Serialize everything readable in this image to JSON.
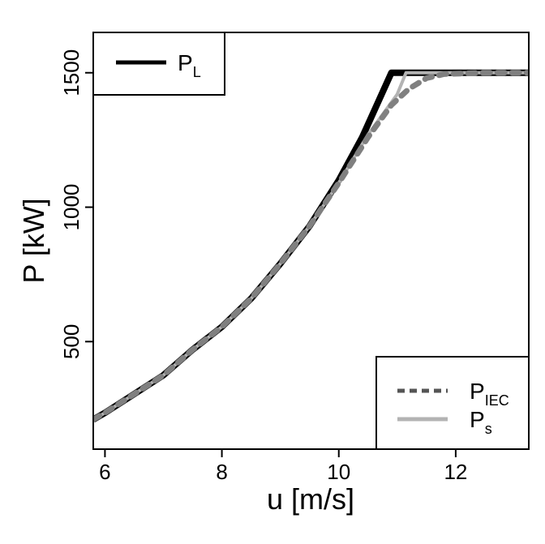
{
  "chart_data": {
    "type": "line",
    "xlabel": "u [m/s]",
    "ylabel": "P [kW]",
    "xlim": [
      5.8,
      13.25
    ],
    "ylim": [
      100,
      1650
    ],
    "x_ticks": [
      6,
      8,
      10,
      12
    ],
    "y_ticks": [
      500,
      1000,
      1500
    ],
    "grid": false,
    "series": [
      {
        "name": "P_L",
        "legend_main": "P",
        "legend_sub": "L",
        "color": "#000000",
        "style": "solid",
        "legend_position": "top-left",
        "x": [
          5.8,
          6.0,
          6.5,
          7.0,
          7.5,
          8.0,
          8.5,
          9.0,
          9.5,
          10.0,
          10.4,
          10.9,
          11.0,
          12.0,
          13.25
        ],
        "y": [
          210,
          235,
          305,
          375,
          470,
          555,
          660,
          790,
          930,
          1100,
          1260,
          1500,
          1500,
          1500,
          1500
        ]
      },
      {
        "name": "P_IEC",
        "legend_main": "P",
        "legend_sub": "IEC",
        "color": "#808080",
        "style": "dashed",
        "legend_position": "bottom-right",
        "x": [
          5.8,
          6.0,
          6.5,
          7.0,
          7.5,
          8.0,
          8.5,
          9.0,
          9.5,
          10.0,
          10.5,
          10.9,
          11.2,
          11.5,
          11.8,
          12.5,
          13.25
        ],
        "y": [
          210,
          235,
          305,
          375,
          470,
          555,
          660,
          790,
          930,
          1090,
          1260,
          1380,
          1440,
          1480,
          1495,
          1500,
          1500
        ]
      },
      {
        "name": "P_s",
        "legend_main": "P",
        "legend_sub": "s",
        "color": "#b3b3b3",
        "style": "solid",
        "legend_position": "bottom-right",
        "x": [
          5.8,
          6.0,
          6.5,
          7.0,
          7.5,
          8.0,
          8.5,
          9.0,
          9.5,
          10.0,
          10.5,
          11.0,
          11.15,
          12.0,
          13.25
        ],
        "y": [
          210,
          235,
          305,
          375,
          470,
          555,
          660,
          790,
          930,
          1090,
          1270,
          1420,
          1500,
          1500,
          1500
        ]
      }
    ]
  }
}
